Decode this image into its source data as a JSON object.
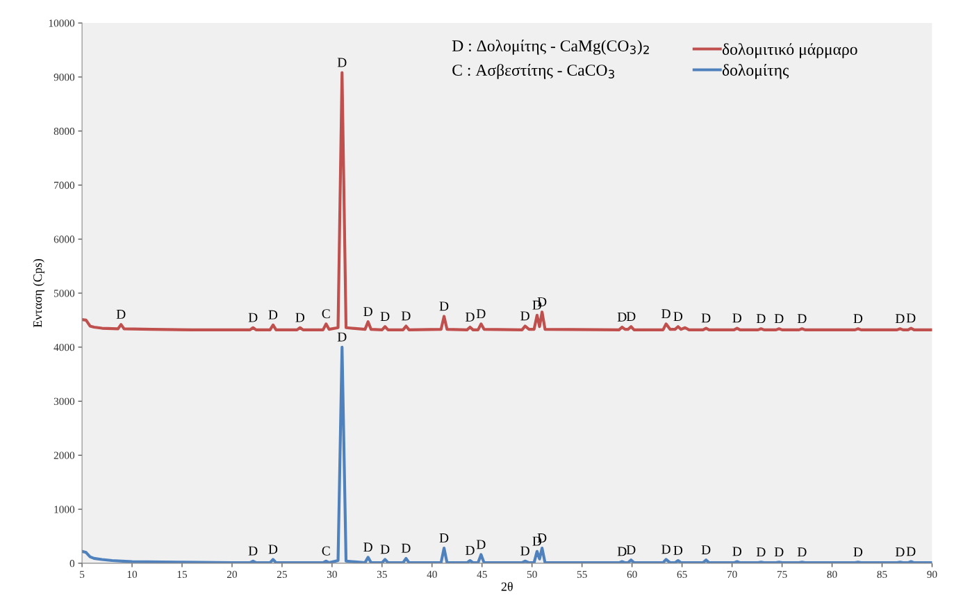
{
  "chart_data": {
    "type": "line",
    "xlabel": "2θ",
    "ylabel": "Ενταση (Cps)",
    "xlim": [
      5,
      90
    ],
    "xticks": [
      5,
      10,
      15,
      20,
      25,
      30,
      35,
      40,
      45,
      50,
      55,
      60,
      65,
      70,
      75,
      80,
      85,
      90
    ],
    "ylim": [
      0,
      10000
    ],
    "yticks": [
      0,
      1000,
      2000,
      3000,
      4000,
      5000,
      6000,
      7000,
      8000,
      9000,
      10000
    ],
    "grid": false,
    "legend": "top right",
    "marker": "none",
    "line_style": "solid",
    "series": [
      {
        "name": "δολομιτικό μάρμαρο",
        "color": "#c0504d",
        "x": [
          5,
          5.4,
          5.8,
          6.2,
          7,
          8.6,
          8.9,
          9.2,
          12,
          16,
          21.8,
          22.1,
          22.4,
          23.8,
          24.1,
          24.4,
          26.5,
          26.8,
          27.1,
          29.1,
          29.4,
          29.7,
          30.6,
          31.0,
          31.4,
          33.3,
          33.6,
          33.9,
          35.0,
          35.3,
          35.6,
          37.1,
          37.4,
          37.7,
          40.9,
          41.2,
          41.5,
          43.5,
          43.8,
          44.1,
          44.6,
          44.9,
          45.2,
          49.0,
          49.3,
          49.7,
          50.2,
          50.5,
          50.75,
          51.0,
          51.3,
          58.7,
          59.0,
          59.3,
          59.6,
          59.9,
          60.2,
          63.1,
          63.4,
          63.8,
          64.3,
          64.6,
          64.9,
          65.3,
          65.7,
          67.1,
          67.4,
          67.7,
          70.2,
          70.5,
          70.8,
          72.6,
          72.9,
          73.2,
          74.4,
          74.7,
          75.0,
          76.7,
          77.0,
          77.3,
          82.3,
          82.6,
          82.9,
          86.5,
          86.8,
          87.1,
          87.6,
          87.9,
          88.2,
          90
        ],
        "values": [
          4510,
          4500,
          4390,
          4370,
          4350,
          4340,
          4420,
          4340,
          4330,
          4320,
          4320,
          4360,
          4320,
          4320,
          4410,
          4320,
          4320,
          4360,
          4320,
          4320,
          4430,
          4330,
          4360,
          9080,
          4360,
          4330,
          4470,
          4330,
          4320,
          4380,
          4320,
          4320,
          4390,
          4320,
          4330,
          4570,
          4330,
          4320,
          4370,
          4320,
          4320,
          4430,
          4330,
          4320,
          4390,
          4330,
          4330,
          4590,
          4380,
          4650,
          4330,
          4320,
          4370,
          4330,
          4330,
          4380,
          4320,
          4320,
          4430,
          4330,
          4330,
          4380,
          4330,
          4360,
          4320,
          4320,
          4350,
          4320,
          4320,
          4350,
          4320,
          4320,
          4340,
          4320,
          4320,
          4340,
          4320,
          4320,
          4340,
          4320,
          4320,
          4340,
          4320,
          4320,
          4340,
          4320,
          4320,
          4350,
          4320,
          4320
        ]
      },
      {
        "name": "δολομίτης",
        "color": "#4f81bd",
        "x": [
          5,
          5.4,
          5.8,
          6.2,
          7,
          8,
          10,
          15,
          20,
          21.8,
          22.1,
          22.4,
          23.8,
          24.1,
          24.4,
          29.1,
          29.4,
          29.7,
          30.6,
          31.0,
          31.4,
          33.3,
          33.6,
          33.9,
          35.0,
          35.3,
          35.6,
          37.1,
          37.4,
          37.7,
          40.9,
          41.2,
          41.5,
          43.5,
          43.8,
          44.1,
          44.6,
          44.9,
          45.2,
          49.0,
          49.3,
          49.7,
          50.2,
          50.5,
          50.75,
          51.0,
          51.3,
          58.7,
          59.0,
          59.3,
          59.6,
          59.9,
          60.2,
          63.1,
          63.4,
          63.8,
          64.3,
          64.6,
          64.9,
          67.1,
          67.4,
          67.7,
          70.2,
          70.5,
          70.8,
          72.6,
          72.9,
          73.2,
          74.4,
          74.7,
          75.0,
          76.7,
          77.0,
          77.3,
          82.3,
          82.6,
          82.9,
          86.5,
          86.8,
          87.1,
          87.6,
          87.9,
          88.2,
          90
        ],
        "values": [
          220,
          200,
          120,
          90,
          70,
          50,
          30,
          20,
          10,
          10,
          40,
          10,
          10,
          70,
          10,
          10,
          40,
          10,
          50,
          4000,
          40,
          10,
          110,
          10,
          10,
          70,
          10,
          10,
          90,
          10,
          10,
          280,
          10,
          10,
          50,
          10,
          10,
          160,
          10,
          10,
          40,
          10,
          10,
          220,
          80,
          280,
          10,
          10,
          30,
          10,
          10,
          60,
          10,
          10,
          70,
          10,
          10,
          50,
          10,
          10,
          60,
          10,
          10,
          30,
          10,
          10,
          20,
          10,
          10,
          20,
          10,
          10,
          20,
          10,
          10,
          20,
          10,
          10,
          20,
          10,
          10,
          30,
          10,
          10
        ]
      }
    ],
    "annotations": [
      "D : Δολομίτης - CaMg(CO$_{3}$)$_{2}$",
      "C : Ασβεστίτης - CaCO$_{3}$",
      {
        "text": "D",
        "x": 8.9,
        "y": 4420
      },
      {
        "text": "D",
        "x": 22.1,
        "y": 4360
      },
      {
        "text": "D",
        "x": 24.1,
        "y": 4410
      },
      {
        "text": "D",
        "x": 26.8,
        "y": 4360
      },
      {
        "text": "C",
        "x": 29.4,
        "y": 4430
      },
      {
        "text": "D",
        "x": 31.0,
        "y": 9080
      },
      {
        "text": "D",
        "x": 33.6,
        "y": 4470
      },
      {
        "text": "D",
        "x": 35.3,
        "y": 4380
      },
      {
        "text": "D",
        "x": 37.4,
        "y": 4390
      },
      {
        "text": "D",
        "x": 41.2,
        "y": 4570
      },
      {
        "text": "D",
        "x": 43.8,
        "y": 4370
      },
      {
        "text": "D",
        "x": 44.9,
        "y": 4430
      },
      {
        "text": "D",
        "x": 49.3,
        "y": 4390
      },
      {
        "text": "D",
        "x": 50.5,
        "y": 4590
      },
      {
        "text": "D",
        "x": 51.0,
        "y": 4650
      },
      {
        "text": "D",
        "x": 59.0,
        "y": 4370
      },
      {
        "text": "D",
        "x": 59.9,
        "y": 4380
      },
      {
        "text": "D",
        "x": 63.4,
        "y": 4430
      },
      {
        "text": "D",
        "x": 64.6,
        "y": 4380
      },
      {
        "text": "D",
        "x": 67.4,
        "y": 4350
      },
      {
        "text": "D",
        "x": 70.5,
        "y": 4350
      },
      {
        "text": "D",
        "x": 72.9,
        "y": 4340
      },
      {
        "text": "D",
        "x": 74.7,
        "y": 4340
      },
      {
        "text": "D",
        "x": 77.0,
        "y": 4340
      },
      {
        "text": "D",
        "x": 82.6,
        "y": 4340
      },
      {
        "text": "D",
        "x": 86.8,
        "y": 4340
      },
      {
        "text": "D",
        "x": 87.9,
        "y": 4350
      },
      {
        "text": "D",
        "x": 22.1,
        "y": 40
      },
      {
        "text": "D",
        "x": 24.1,
        "y": 70
      },
      {
        "text": "C",
        "x": 29.4,
        "y": 40
      },
      {
        "text": "D",
        "x": 31.0,
        "y": 4000
      },
      {
        "text": "D",
        "x": 33.6,
        "y": 110
      },
      {
        "text": "D",
        "x": 35.3,
        "y": 70
      },
      {
        "text": "D",
        "x": 37.4,
        "y": 90
      },
      {
        "text": "D",
        "x": 41.2,
        "y": 280
      },
      {
        "text": "D",
        "x": 43.8,
        "y": 50
      },
      {
        "text": "D",
        "x": 44.9,
        "y": 160
      },
      {
        "text": "D",
        "x": 49.3,
        "y": 40
      },
      {
        "text": "D",
        "x": 50.5,
        "y": 220
      },
      {
        "text": "D",
        "x": 51.0,
        "y": 280
      },
      {
        "text": "D",
        "x": 59.0,
        "y": 30
      },
      {
        "text": "D",
        "x": 59.9,
        "y": 60
      },
      {
        "text": "D",
        "x": 63.4,
        "y": 70
      },
      {
        "text": "D",
        "x": 64.6,
        "y": 50
      },
      {
        "text": "D",
        "x": 67.4,
        "y": 60
      },
      {
        "text": "D",
        "x": 70.5,
        "y": 30
      },
      {
        "text": "D",
        "x": 72.9,
        "y": 20
      },
      {
        "text": "D",
        "x": 74.7,
        "y": 20
      },
      {
        "text": "D",
        "x": 77.0,
        "y": 20
      },
      {
        "text": "D",
        "x": 82.6,
        "y": 20
      },
      {
        "text": "D",
        "x": 86.8,
        "y": 20
      },
      {
        "text": "D",
        "x": 87.9,
        "y": 30
      }
    ]
  }
}
